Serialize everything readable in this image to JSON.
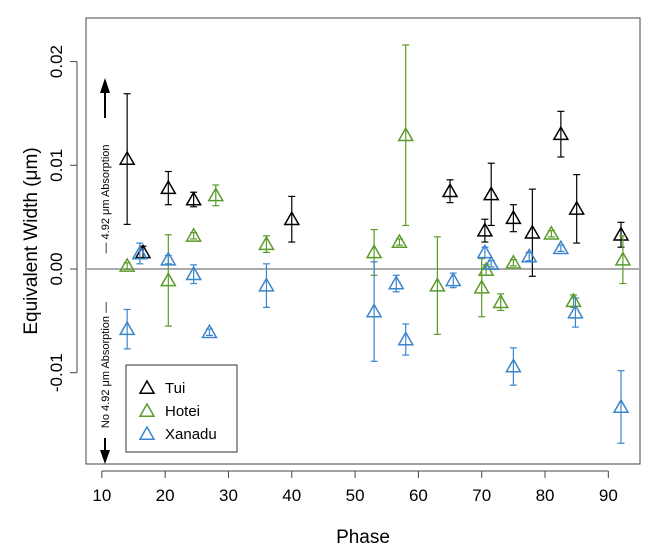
{
  "chart_data": {
    "type": "scatter",
    "title": "",
    "xlabel": "Phase",
    "ylabel": "Equivalent Width (μm)",
    "xlim": [
      7.5,
      95
    ],
    "ylim": [
      -0.0188,
      0.0242
    ],
    "xticks": [
      10,
      20,
      30,
      40,
      50,
      60,
      70,
      80,
      90
    ],
    "yticks": [
      0.02,
      0.01,
      0.0,
      -0.01
    ],
    "ytick_labels": [
      "0.02",
      "0.01",
      "0.00",
      "-0.01"
    ],
    "reference_line": 0.0,
    "annotations": {
      "up": "— 4.92 μm Absorption",
      "down": "No 4.92 μm Absorption —"
    },
    "legend": {
      "position": "bottom-left",
      "entries": [
        "Tui",
        "Hotei",
        "Xanadu"
      ]
    },
    "series": [
      {
        "name": "Tui",
        "color": "#000000",
        "points": [
          {
            "x": 14,
            "y": 0.0106,
            "err": 0.0063
          },
          {
            "x": 16.5,
            "y": 0.0016,
            "err": 0.0006
          },
          {
            "x": 20.5,
            "y": 0.0078,
            "err": 0.0016
          },
          {
            "x": 24.5,
            "y": 0.0067,
            "err": 0.0007
          },
          {
            "x": 40,
            "y": 0.0048,
            "err": 0.0022
          },
          {
            "x": 65,
            "y": 0.0075,
            "err": 0.0011
          },
          {
            "x": 70.5,
            "y": 0.0037,
            "err": 0.0011
          },
          {
            "x": 71.5,
            "y": 0.0072,
            "err": 0.003
          },
          {
            "x": 75,
            "y": 0.0049,
            "err": 0.0013
          },
          {
            "x": 78,
            "y": 0.0035,
            "err": 0.0042
          },
          {
            "x": 82.5,
            "y": 0.013,
            "err": 0.0022
          },
          {
            "x": 85,
            "y": 0.0058,
            "err": 0.0033
          },
          {
            "x": 92,
            "y": 0.0033,
            "err": 0.0012
          }
        ]
      },
      {
        "name": "Hotei",
        "color": "#5a9a2a",
        "points": [
          {
            "x": 14,
            "y": 0.0003,
            "err": 0.0003
          },
          {
            "x": 20.5,
            "y": -0.0011,
            "err": 0.0044
          },
          {
            "x": 24.5,
            "y": 0.0032,
            "err": 0.0003
          },
          {
            "x": 28,
            "y": 0.0071,
            "err": 0.001
          },
          {
            "x": 36,
            "y": 0.0024,
            "err": 0.0008
          },
          {
            "x": 53,
            "y": 0.0016,
            "err": 0.0022
          },
          {
            "x": 57,
            "y": 0.0026,
            "err": 0.0003
          },
          {
            "x": 58,
            "y": 0.0129,
            "err": 0.0087
          },
          {
            "x": 63,
            "y": -0.0016,
            "err": 0.0047
          },
          {
            "x": 70,
            "y": -0.0018,
            "err": 0.0028
          },
          {
            "x": 70.7,
            "y": -0.0001,
            "err": 0.0005
          },
          {
            "x": 73,
            "y": -0.0032,
            "err": 0.0008
          },
          {
            "x": 75,
            "y": 0.0006,
            "err": 0.0003
          },
          {
            "x": 81,
            "y": 0.0034,
            "err": 0.0003
          },
          {
            "x": 84.5,
            "y": -0.0031,
            "err": 0.0006
          },
          {
            "x": 92.3,
            "y": 0.0009,
            "err": 0.0023
          }
        ]
      },
      {
        "name": "Xanadu",
        "color": "#3a85cc",
        "points": [
          {
            "x": 14,
            "y": -0.0058,
            "err": 0.0019
          },
          {
            "x": 16,
            "y": 0.0015,
            "err": 0.001
          },
          {
            "x": 20.5,
            "y": 0.0009,
            "err": 0.0004
          },
          {
            "x": 24.5,
            "y": -0.0005,
            "err": 0.0009
          },
          {
            "x": 27,
            "y": -0.0061,
            "err": 0.0003
          },
          {
            "x": 36,
            "y": -0.0016,
            "err": 0.0021
          },
          {
            "x": 53,
            "y": -0.0041,
            "err": 0.0048
          },
          {
            "x": 56.5,
            "y": -0.0014,
            "err": 0.0008
          },
          {
            "x": 58,
            "y": -0.0068,
            "err": 0.0015
          },
          {
            "x": 65.5,
            "y": -0.0011,
            "err": 0.0007
          },
          {
            "x": 70.5,
            "y": 0.0016,
            "err": 0.0005
          },
          {
            "x": 71.5,
            "y": 0.0005,
            "err": 0.0003
          },
          {
            "x": 77.5,
            "y": 0.0012,
            "err": 0.0004
          },
          {
            "x": 82.5,
            "y": 0.002,
            "err": 0.0003
          },
          {
            "x": 75,
            "y": -0.0094,
            "err": 0.0018
          },
          {
            "x": 84.8,
            "y": -0.0042,
            "err": 0.0014
          },
          {
            "x": 92,
            "y": -0.0133,
            "err": 0.0035
          }
        ]
      }
    ]
  }
}
